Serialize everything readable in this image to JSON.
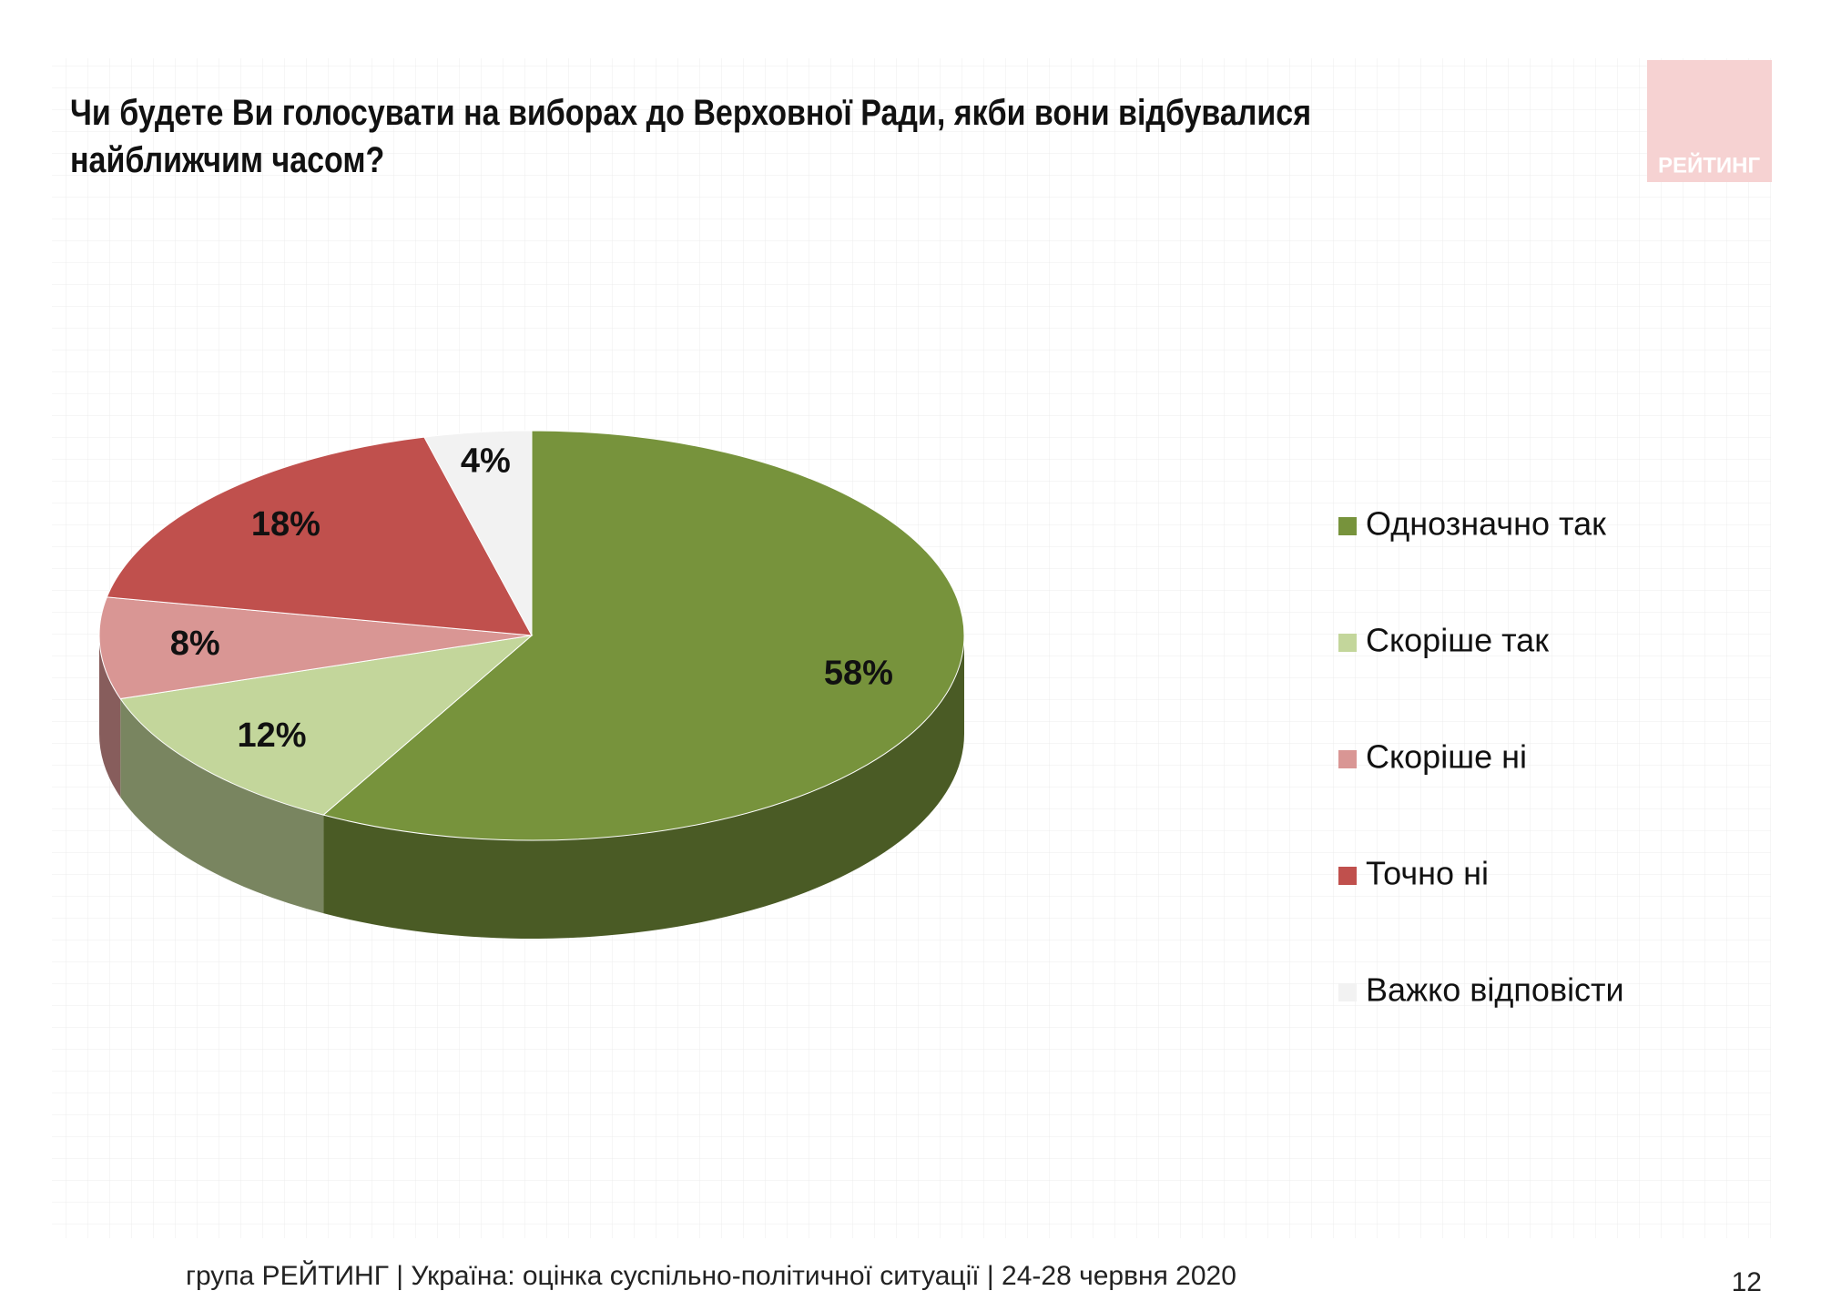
{
  "chart_data": {
    "type": "pie3d",
    "title": "Чи будете Ви голосувати на виборах до Верховної Ради, якби вони відбувалися найближчим часом?",
    "categories": [
      "Однозначно так",
      "Скоріше  так",
      "Скоріше  ні",
      "Точно ні",
      "Важко відповісти"
    ],
    "values": [
      58,
      12,
      8,
      18,
      4
    ],
    "value_labels": [
      "58%",
      "12%",
      "8%",
      "18%",
      "4%"
    ],
    "colors": [
      "#77933c",
      "#c3d69b",
      "#d99694",
      "#c0504d",
      "#f2f2f2"
    ],
    "legend": "right"
  },
  "logo": "РЕЙТИНГ",
  "footer": {
    "text": "група РЕЙТИНГ |  Україна: оцінка суспільно-політичної  ситуації  | 24-28 червня  2020",
    "page": 12
  }
}
